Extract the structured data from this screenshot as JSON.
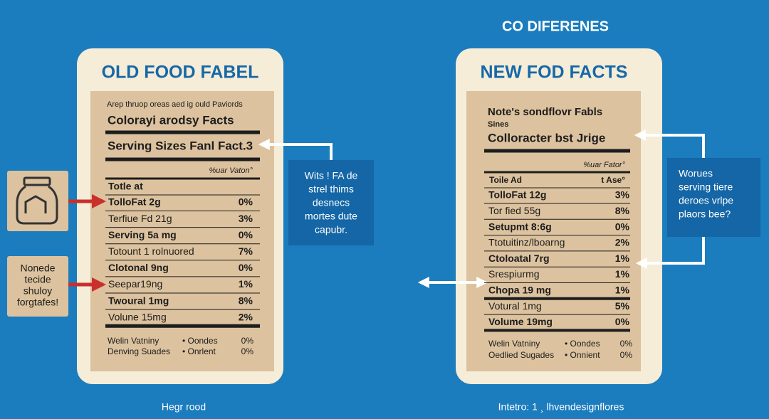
{
  "heading": "CO DIFERENES",
  "old_label": {
    "title": "OLD FOOD FABEL",
    "intro": "Arep thruop oreas aed ig ould Paviords",
    "brand": "Colorayi arodsy Facts",
    "serving": "Serving Sizes Fanl Fact.3",
    "dv_header": "%uar Vaton°",
    "total_header": "Totle at",
    "rows": [
      {
        "name": "TolloFat 2g",
        "pct": "0%"
      },
      {
        "name": "Terfiue Fd 21g",
        "pct": "3%"
      },
      {
        "name": "Serving 5a mg",
        "pct": "0%"
      },
      {
        "name": "Totount 1 rolnuored",
        "pct": "7%"
      },
      {
        "name": "Clotonal 9ng",
        "pct": "0%"
      },
      {
        "name": "Seepar19ng",
        "pct": "1%"
      },
      {
        "name": "Twoural 1mg",
        "pct": "8%"
      },
      {
        "name": "Volune 15mg",
        "pct": "2%"
      }
    ],
    "footer": [
      {
        "name": "Welin Vatniny",
        "mid": "•   Oondes",
        "pct": "0%"
      },
      {
        "name": "Denving Suades",
        "mid": "•   Onrlent",
        "pct": "0%"
      }
    ],
    "caption": "Hegr rood"
  },
  "new_label": {
    "title": "NEW FOD FACTS",
    "intro": "Note's sondflovr Fabls",
    "sines": "Sines",
    "brand": "Colloracter bst Jrige",
    "dv_header": "%uar Fator°",
    "total_header": "Toile Ad",
    "total_pct": "t Ase°",
    "rows": [
      {
        "name": "TolloFat 12g",
        "pct": "3%"
      },
      {
        "name": "Tor fied 55g",
        "pct": "8%"
      },
      {
        "name": "Setupmt 8:6g",
        "pct": "0%"
      },
      {
        "name": "Ttotuitinz/lboarng",
        "pct": "2%"
      },
      {
        "name": "Ctoloatal 7rg",
        "pct": "1%"
      },
      {
        "name": "Srespiurmg",
        "pct": "1%"
      },
      {
        "name": "Chopa 19 mg",
        "pct": "1%"
      },
      {
        "name": "Votural 1mg",
        "pct": "5%"
      },
      {
        "name": "Volume 19mg",
        "pct": "0%"
      }
    ],
    "footer": [
      {
        "name": "Welin Vatniny",
        "mid": "•   Oondes",
        "pct": "0%"
      },
      {
        "name": "Oedlied Sugades",
        "mid": "•   Onnient",
        "pct": "0%"
      }
    ],
    "caption": "Intetro: 1 ¸ lhvendesignflores"
  },
  "callouts": {
    "warning": [
      "Nonede",
      "tecide",
      "shuloy",
      "forgtafes!"
    ],
    "middle": [
      "Wits ! FA de",
      "strel thims",
      "desnecs",
      "mortes dute",
      "capubr."
    ],
    "right": [
      "Worues",
      "serving tiere",
      "deroes vrlpe",
      "plaors bee?"
    ]
  }
}
